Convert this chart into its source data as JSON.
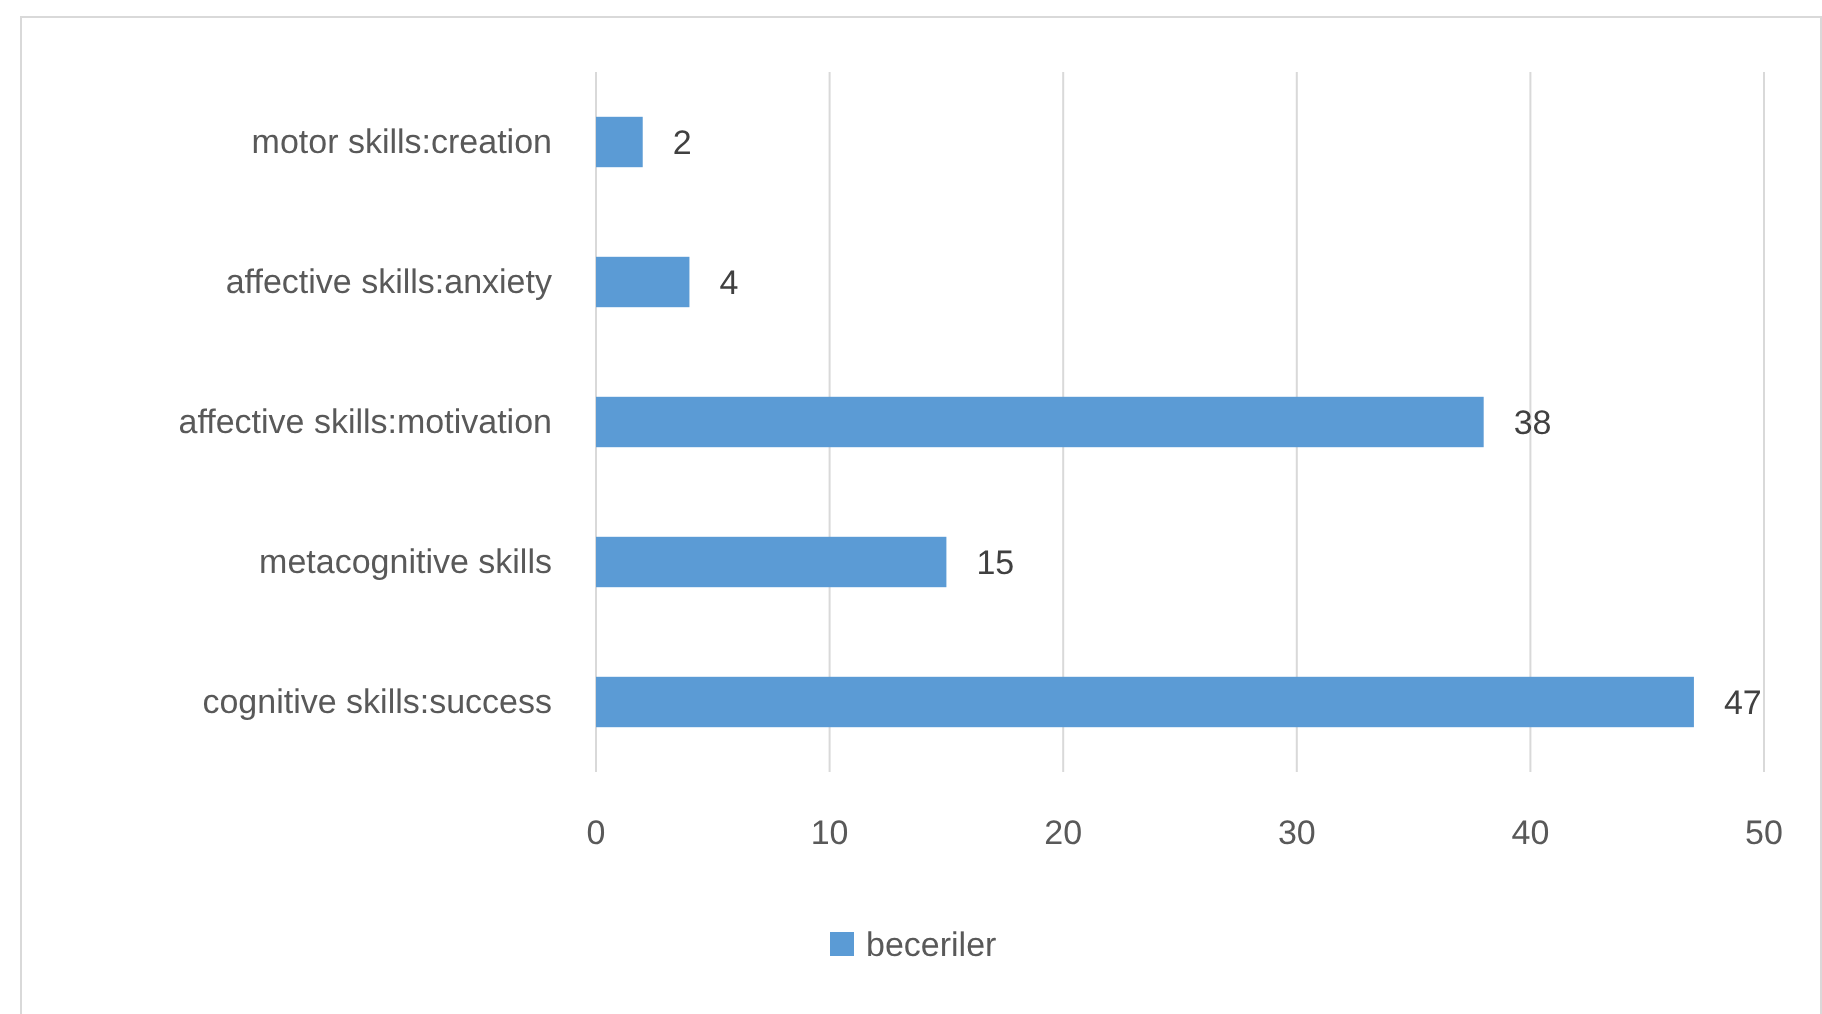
{
  "chart_data": {
    "type": "bar",
    "orientation": "horizontal",
    "categories": [
      "motor skills:creation",
      "affective skills:anxiety",
      "affective skills:motivation",
      "metacognitive skills",
      "cognitive skills:success"
    ],
    "series": [
      {
        "name": "beceriler",
        "color": "#5b9bd5",
        "values": [
          2,
          4,
          38,
          15,
          47
        ]
      }
    ],
    "xlim": [
      0,
      50
    ],
    "xticks": [
      0,
      10,
      20,
      30,
      40,
      50
    ],
    "grid": "x",
    "legend": "bottom",
    "data_labels": true
  }
}
